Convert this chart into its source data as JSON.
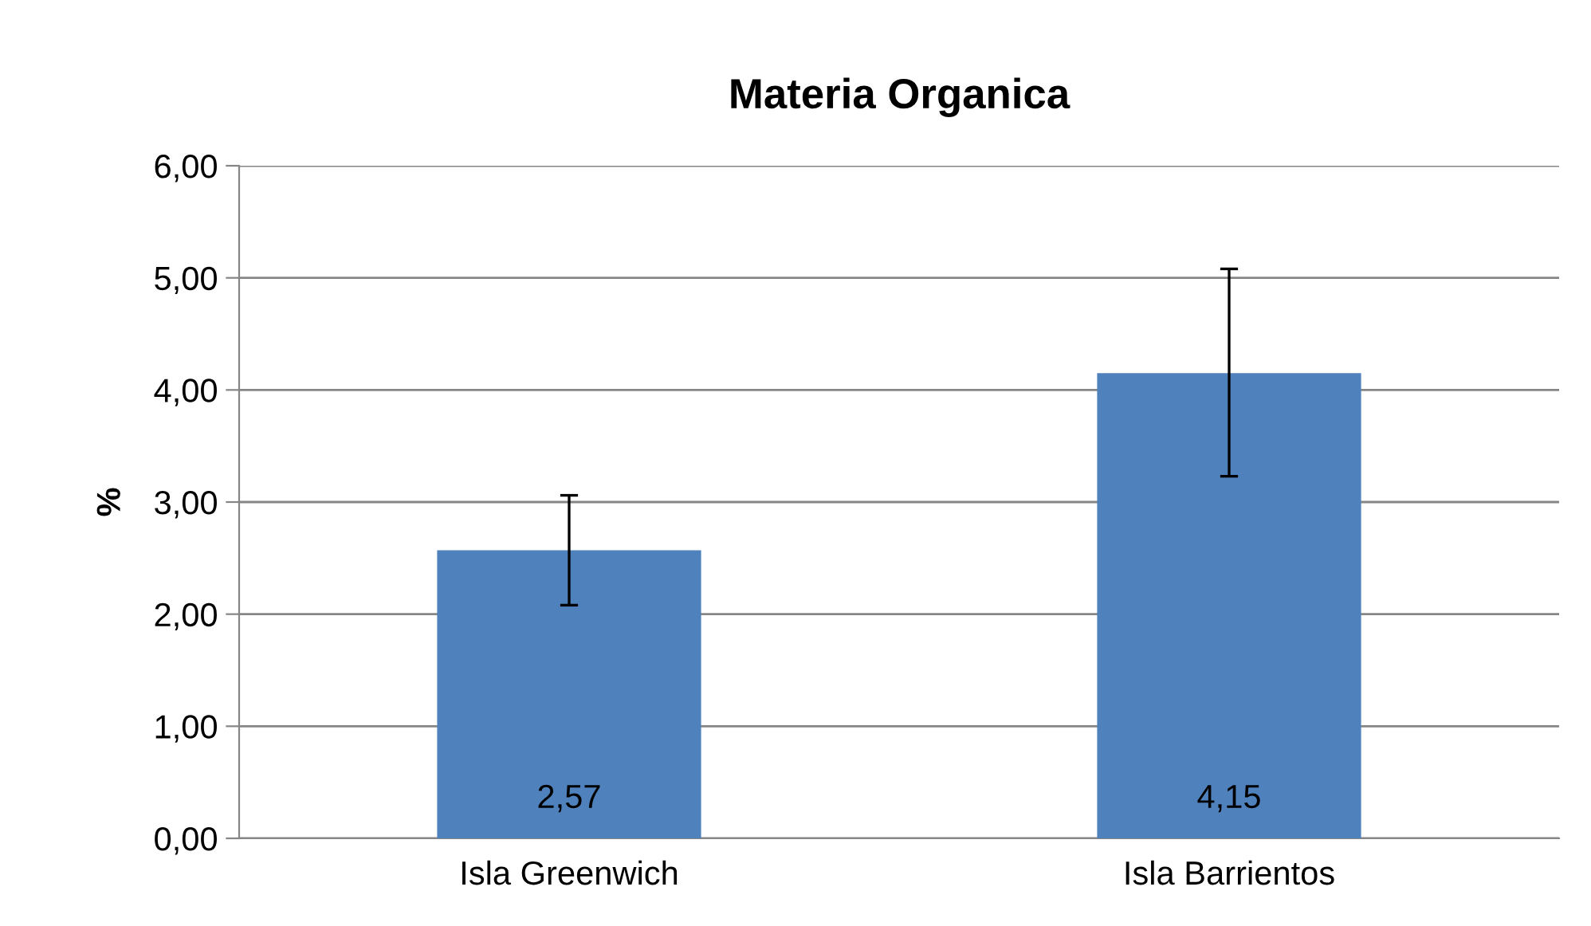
{
  "chart_data": {
    "type": "bar",
    "title": "Materia Organica",
    "ylabel": "%",
    "categories": [
      "Isla Greenwich",
      "Isla Barrientos"
    ],
    "values": [
      2.57,
      4.15
    ],
    "color": "#4f81bd",
    "errors": [
      [
        2.08,
        3.06
      ],
      [
        3.23,
        5.08
      ]
    ],
    "value_labels": [
      "2,57",
      "4,15"
    ],
    "ylim": [
      0,
      6
    ],
    "yticks": [
      {
        "value": 0,
        "label": "0,00"
      },
      {
        "value": 1,
        "label": "1,00"
      },
      {
        "value": 2,
        "label": "2,00"
      },
      {
        "value": 3,
        "label": "3,00"
      },
      {
        "value": 4,
        "label": "4,00"
      },
      {
        "value": 5,
        "label": "5,00"
      },
      {
        "value": 6,
        "label": "6,00"
      }
    ],
    "grid": "y",
    "legend": false
  }
}
